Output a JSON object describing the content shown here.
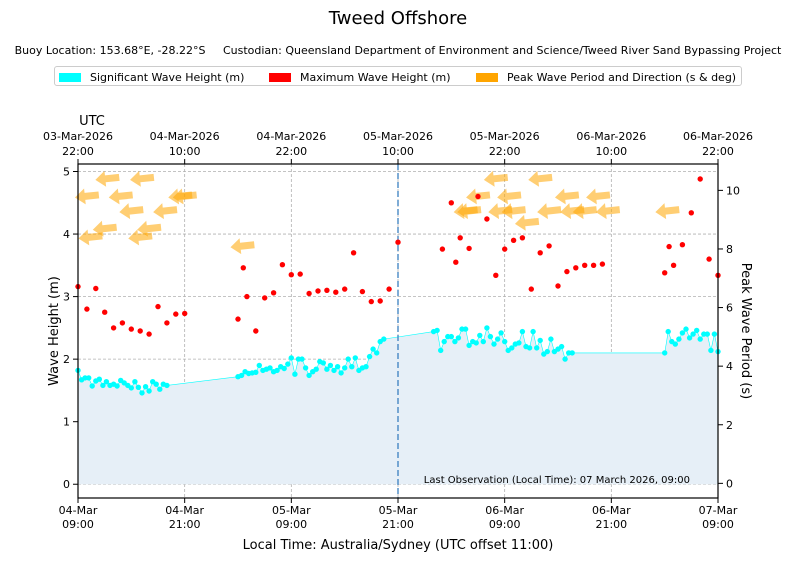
{
  "title": "Tweed Offshore",
  "subtitle": {
    "location": "Buoy Location: 153.68°E, -28.22°S",
    "custodian": "Custodian: Queensland Department of Environment and Science/Tweed River Sand Bypassing Project"
  },
  "legend": [
    {
      "label": "Significant Wave Height (m)",
      "color": "#00ffff"
    },
    {
      "label": "Maximum Wave Height (m)",
      "color": "#ff0000"
    },
    {
      "label": "Peak Wave Period and Direction (s & deg)",
      "color": "#ffa500"
    }
  ],
  "chart_data": {
    "type": "scatter",
    "title": "Tweed Offshore",
    "xlabel": "Local Time: Australia/Sydney (UTC offset 11:00)",
    "ylabel": "Wave Height (m)",
    "y2label": "Peak Wave Period (s)",
    "top_axis_title": "UTC",
    "x_unit": "hours since 04-Mar 09:00 local",
    "xlim": [
      0,
      72
    ],
    "ylim": [
      -0.22,
      5.12
    ],
    "y2lim": [
      -0.5,
      10.9
    ],
    "yticks": [
      "0",
      "1",
      "2",
      "3",
      "4",
      "5"
    ],
    "y2ticks": [
      "0",
      "2",
      "4",
      "6",
      "8",
      "10"
    ],
    "bottom_ticks": [
      {
        "x": 0,
        "line1": "04-Mar",
        "line2": "09:00"
      },
      {
        "x": 12,
        "line1": "04-Mar",
        "line2": "21:00"
      },
      {
        "x": 24,
        "line1": "05-Mar",
        "line2": "09:00"
      },
      {
        "x": 36,
        "line1": "05-Mar",
        "line2": "21:00"
      },
      {
        "x": 48,
        "line1": "06-Mar",
        "line2": "09:00"
      },
      {
        "x": 60,
        "line1": "06-Mar",
        "line2": "21:00"
      },
      {
        "x": 72,
        "line1": "07-Mar",
        "line2": "09:00"
      }
    ],
    "top_ticks": [
      {
        "x": 0,
        "line1": "03-Mar-2026",
        "line2": "22:00"
      },
      {
        "x": 12,
        "line1": "04-Mar-2026",
        "line2": "10:00"
      },
      {
        "x": 24,
        "line1": "04-Mar-2026",
        "line2": "22:00"
      },
      {
        "x": 36,
        "line1": "05-Mar-2026",
        "line2": "10:00"
      },
      {
        "x": 48,
        "line1": "05-Mar-2026",
        "line2": "22:00"
      },
      {
        "x": 60,
        "line1": "06-Mar-2026",
        "line2": "10:00"
      },
      {
        "x": 72,
        "line1": "06-Mar-2026",
        "line2": "22:00"
      }
    ],
    "now_marker_x": 36,
    "annotation": "Last Observation (Local Time): 07 March 2026, 09:00",
    "series": [
      {
        "name": "Significant Wave Height (m)",
        "color": "#00ffff",
        "fill_color": "#e6eff7",
        "points": [
          [
            0,
            1.82
          ],
          [
            0.4,
            1.67
          ],
          [
            0.8,
            1.7
          ],
          [
            1.2,
            1.7
          ],
          [
            1.6,
            1.57
          ],
          [
            2,
            1.65
          ],
          [
            2.4,
            1.68
          ],
          [
            2.8,
            1.58
          ],
          [
            3.2,
            1.64
          ],
          [
            3.6,
            1.58
          ],
          [
            4,
            1.6
          ],
          [
            4.4,
            1.57
          ],
          [
            4.8,
            1.66
          ],
          [
            5.2,
            1.62
          ],
          [
            5.6,
            1.58
          ],
          [
            6,
            1.54
          ],
          [
            6.4,
            1.64
          ],
          [
            6.8,
            1.55
          ],
          [
            7.2,
            1.46
          ],
          [
            7.6,
            1.56
          ],
          [
            8,
            1.49
          ],
          [
            8.4,
            1.64
          ],
          [
            8.8,
            1.6
          ],
          [
            9.2,
            1.52
          ],
          [
            9.6,
            1.6
          ],
          [
            10,
            1.58
          ],
          [
            18,
            1.72
          ],
          [
            18.4,
            1.74
          ],
          [
            18.8,
            1.8
          ],
          [
            19.2,
            1.77
          ],
          [
            19.6,
            1.78
          ],
          [
            20,
            1.79
          ],
          [
            20.4,
            1.9
          ],
          [
            20.8,
            1.82
          ],
          [
            21.2,
            1.84
          ],
          [
            21.6,
            1.86
          ],
          [
            22,
            1.8
          ],
          [
            22.4,
            1.82
          ],
          [
            22.8,
            1.88
          ],
          [
            23.2,
            1.85
          ],
          [
            23.6,
            1.92
          ],
          [
            24,
            2.02
          ],
          [
            24.4,
            1.76
          ],
          [
            24.8,
            2.0
          ],
          [
            25.2,
            2.0
          ],
          [
            25.6,
            1.86
          ],
          [
            26,
            1.74
          ],
          [
            26.4,
            1.8
          ],
          [
            26.8,
            1.84
          ],
          [
            27.2,
            1.96
          ],
          [
            27.6,
            1.94
          ],
          [
            28,
            1.84
          ],
          [
            28.4,
            1.9
          ],
          [
            28.8,
            1.82
          ],
          [
            29.2,
            1.88
          ],
          [
            29.6,
            1.78
          ],
          [
            30,
            1.86
          ],
          [
            30.4,
            2.0
          ],
          [
            30.8,
            1.88
          ],
          [
            31.2,
            2.02
          ],
          [
            31.6,
            1.82
          ],
          [
            32,
            1.86
          ],
          [
            32.4,
            1.88
          ],
          [
            32.8,
            2.04
          ],
          [
            33.2,
            2.16
          ],
          [
            33.6,
            2.1
          ],
          [
            34,
            2.28
          ],
          [
            34.4,
            2.32
          ],
          [
            40,
            2.44
          ],
          [
            40.4,
            2.46
          ],
          [
            40.8,
            2.14
          ],
          [
            41.2,
            2.28
          ],
          [
            41.6,
            2.36
          ],
          [
            42,
            2.36
          ],
          [
            42.4,
            2.28
          ],
          [
            42.8,
            2.34
          ],
          [
            43.2,
            2.48
          ],
          [
            43.6,
            2.48
          ],
          [
            44,
            2.22
          ],
          [
            44.4,
            2.28
          ],
          [
            44.8,
            2.26
          ],
          [
            45.2,
            2.38
          ],
          [
            45.6,
            2.28
          ],
          [
            46,
            2.5
          ],
          [
            46.4,
            2.36
          ],
          [
            46.8,
            2.24
          ],
          [
            47.2,
            2.32
          ],
          [
            47.6,
            2.42
          ],
          [
            48,
            2.28
          ],
          [
            48.4,
            2.14
          ],
          [
            48.8,
            2.18
          ],
          [
            49.2,
            2.24
          ],
          [
            49.6,
            2.26
          ],
          [
            50,
            2.44
          ],
          [
            50.4,
            2.2
          ],
          [
            50.8,
            2.18
          ],
          [
            51.2,
            2.44
          ],
          [
            51.6,
            2.18
          ],
          [
            52,
            2.3
          ],
          [
            52.4,
            2.08
          ],
          [
            52.8,
            2.12
          ],
          [
            53.2,
            2.32
          ],
          [
            53.6,
            2.12
          ],
          [
            54,
            2.16
          ],
          [
            54.4,
            2.2
          ],
          [
            54.8,
            2.0
          ],
          [
            55.2,
            2.1
          ],
          [
            55.6,
            2.1
          ],
          [
            66,
            2.1
          ],
          [
            66.4,
            2.44
          ],
          [
            66.8,
            2.28
          ],
          [
            67.2,
            2.24
          ],
          [
            67.6,
            2.32
          ],
          [
            68,
            2.42
          ],
          [
            68.4,
            2.48
          ],
          [
            68.8,
            2.34
          ],
          [
            69.2,
            2.4
          ],
          [
            69.6,
            2.46
          ],
          [
            70,
            2.32
          ],
          [
            70.4,
            2.4
          ],
          [
            70.8,
            2.4
          ],
          [
            71.2,
            2.14
          ],
          [
            71.6,
            2.4
          ],
          [
            72,
            2.12
          ]
        ]
      },
      {
        "name": "Maximum Wave Height (m)",
        "color": "#ff0000",
        "points": [
          [
            0,
            3.16
          ],
          [
            1,
            2.8
          ],
          [
            2,
            3.13
          ],
          [
            3,
            2.75
          ],
          [
            4,
            2.5
          ],
          [
            5,
            2.58
          ],
          [
            6,
            2.48
          ],
          [
            7,
            2.45
          ],
          [
            8,
            2.4
          ],
          [
            9,
            2.84
          ],
          [
            10,
            2.58
          ],
          [
            11,
            2.72
          ],
          [
            12,
            2.73
          ],
          [
            18,
            2.64
          ],
          [
            18.6,
            3.46
          ],
          [
            19,
            3.0
          ],
          [
            20,
            2.45
          ],
          [
            21,
            2.98
          ],
          [
            22,
            3.06
          ],
          [
            23,
            3.51
          ],
          [
            24,
            3.35
          ],
          [
            25,
            3.36
          ],
          [
            26,
            3.05
          ],
          [
            27,
            3.09
          ],
          [
            28,
            3.1
          ],
          [
            29,
            3.07
          ],
          [
            30,
            3.12
          ],
          [
            31,
            3.7
          ],
          [
            32,
            3.08
          ],
          [
            33,
            2.92
          ],
          [
            34,
            2.93
          ],
          [
            35,
            3.12
          ],
          [
            36,
            3.87
          ],
          [
            41,
            3.76
          ],
          [
            42,
            4.5
          ],
          [
            42.5,
            3.55
          ],
          [
            43,
            3.94
          ],
          [
            44,
            3.77
          ],
          [
            45,
            4.6
          ],
          [
            46,
            4.24
          ],
          [
            47,
            3.34
          ],
          [
            48,
            3.76
          ],
          [
            49,
            3.9
          ],
          [
            50,
            3.94
          ],
          [
            51,
            3.12
          ],
          [
            52,
            3.7
          ],
          [
            53,
            3.81
          ],
          [
            54,
            3.17
          ],
          [
            55,
            3.4
          ],
          [
            56,
            3.46
          ],
          [
            57,
            3.5
          ],
          [
            58,
            3.5
          ],
          [
            59,
            3.52
          ],
          [
            66,
            3.38
          ],
          [
            66.5,
            3.8
          ],
          [
            67,
            3.5
          ],
          [
            68,
            3.83
          ],
          [
            69,
            4.34
          ],
          [
            70,
            4.88
          ],
          [
            71,
            3.6
          ],
          [
            72,
            3.34
          ]
        ]
      },
      {
        "name": "Peak Wave Period and Direction (s & deg)",
        "color": "#ffa500",
        "points": [
          [
            1,
            9.8
          ],
          [
            3.3,
            10.4
          ],
          [
            7.2,
            10.4
          ],
          [
            4.8,
            9.8
          ],
          [
            11.5,
            9.8
          ],
          [
            6,
            9.3
          ],
          [
            9.8,
            9.3
          ],
          [
            3,
            8.7
          ],
          [
            8,
            8.7
          ],
          [
            1.4,
            8.4
          ],
          [
            7,
            8.4
          ],
          [
            18.5,
            8.1
          ],
          [
            12,
            9.8
          ],
          [
            45,
            9.8
          ],
          [
            47,
            10.4
          ],
          [
            48.5,
            9.8
          ],
          [
            52,
            10.4
          ],
          [
            55,
            9.8
          ],
          [
            58.5,
            9.8
          ],
          [
            44,
            9.3
          ],
          [
            47.5,
            9.3
          ],
          [
            49,
            9.3
          ],
          [
            50.5,
            8.9
          ],
          [
            53,
            9.3
          ],
          [
            55.6,
            9.3
          ],
          [
            57,
            9.3
          ],
          [
            59.6,
            9.3
          ],
          [
            43.6,
            9.3
          ],
          [
            66.3,
            9.3
          ]
        ]
      }
    ]
  }
}
